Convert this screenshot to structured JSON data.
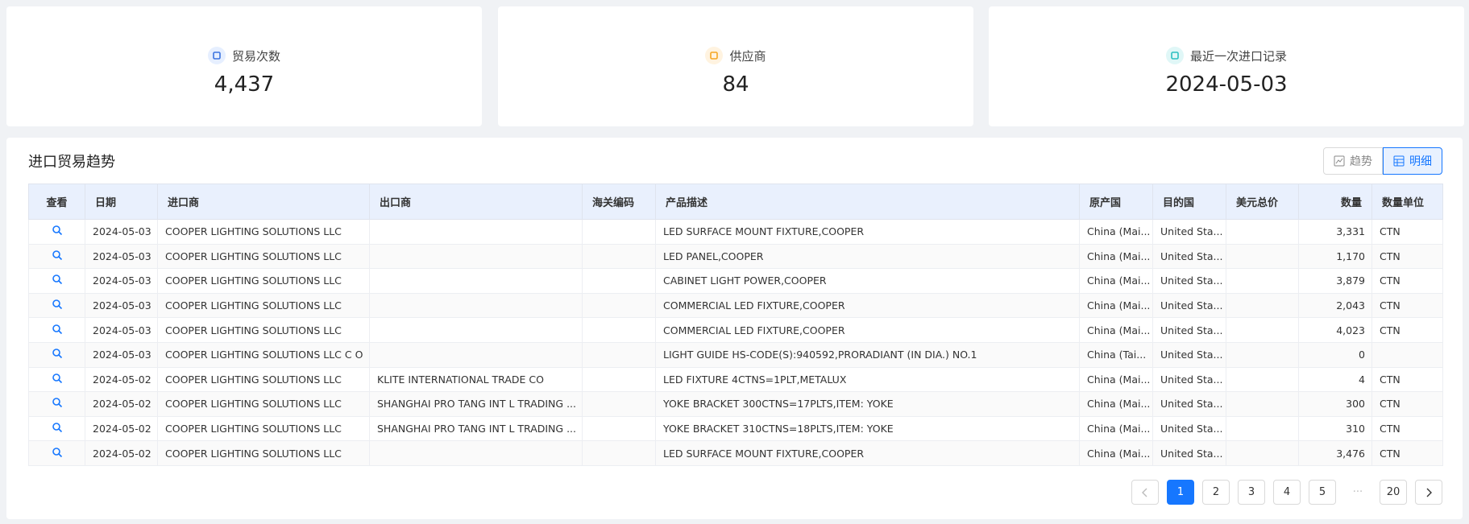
{
  "cards": [
    {
      "label": "贸易次数",
      "value": "4,437"
    },
    {
      "label": "供应商",
      "value": "84"
    },
    {
      "label": "最近一次进口记录",
      "value": "2024-05-03"
    }
  ],
  "section": {
    "title": "进口贸易趋势",
    "buttons": [
      "趋势",
      "明细"
    ]
  },
  "table": {
    "columns": [
      "查看",
      "日期",
      "进口商",
      "出口商",
      "海关编码",
      "产品描述",
      "原产国",
      "目的国",
      "美元总价",
      "数量",
      "数量单位"
    ],
    "rows": [
      [
        null,
        "2024-05-03",
        "COOPER LIGHTING SOLUTIONS LLC",
        null,
        null,
        "LED SURFACE MOUNT FIXTURE,COOPER",
        "China (Mai...",
        "United Sta...",
        null,
        "3,331",
        "CTN"
      ],
      [
        null,
        "2024-05-03",
        "COOPER LIGHTING SOLUTIONS LLC",
        null,
        null,
        "LED PANEL,COOPER",
        "China (Mai...",
        "United Sta...",
        null,
        "1,170",
        "CTN"
      ],
      [
        null,
        "2024-05-03",
        "COOPER LIGHTING SOLUTIONS LLC",
        null,
        null,
        "CABINET LIGHT POWER,COOPER",
        "China (Mai...",
        "United Sta...",
        null,
        "3,879",
        "CTN"
      ],
      [
        null,
        "2024-05-03",
        "COOPER LIGHTING SOLUTIONS LLC",
        null,
        null,
        "COMMERCIAL LED FIXTURE,COOPER",
        "China (Mai...",
        "United Sta...",
        null,
        "2,043",
        "CTN"
      ],
      [
        null,
        "2024-05-03",
        "COOPER LIGHTING SOLUTIONS LLC",
        null,
        null,
        "COMMERCIAL LED FIXTURE,COOPER",
        "China (Mai...",
        "United Sta...",
        null,
        "4,023",
        "CTN"
      ],
      [
        null,
        "2024-05-03",
        "COOPER LIGHTING SOLUTIONS LLC C O",
        null,
        null,
        "LIGHT GUIDE HS-CODE(S):940592,PRORADIANT (IN DIA.) NO.1",
        "China (Tai...",
        "United Sta...",
        null,
        "0",
        null
      ],
      [
        null,
        "2024-05-02",
        "COOPER LIGHTING SOLUTIONS LLC",
        "KLITE INTERNATIONAL TRADE CO",
        null,
        "LED FIXTURE 4CTNS=1PLT,METALUX",
        "China (Mai...",
        "United Sta...",
        null,
        "4",
        "CTN"
      ],
      [
        null,
        "2024-05-02",
        "COOPER LIGHTING SOLUTIONS LLC",
        "SHANGHAI PRO TANG INT L TRADING ...",
        null,
        "YOKE BRACKET 300CTNS=17PLTS,ITEM: YOKE",
        "China (Mai...",
        "United Sta...",
        null,
        "300",
        "CTN"
      ],
      [
        null,
        "2024-05-02",
        "COOPER LIGHTING SOLUTIONS LLC",
        "SHANGHAI PRO TANG INT L TRADING ...",
        null,
        "YOKE BRACKET 310CTNS=18PLTS,ITEM: YOKE",
        "China (Mai...",
        "United Sta...",
        null,
        "310",
        "CTN"
      ],
      [
        null,
        "2024-05-02",
        "COOPER LIGHTING SOLUTIONS LLC",
        null,
        null,
        "LED SURFACE MOUNT FIXTURE,COOPER",
        "China (Mai...",
        "United Sta...",
        null,
        "3,476",
        "CTN"
      ]
    ]
  },
  "pagination": [
    "1",
    "2",
    "3",
    "4",
    "5",
    "···",
    "20"
  ]
}
